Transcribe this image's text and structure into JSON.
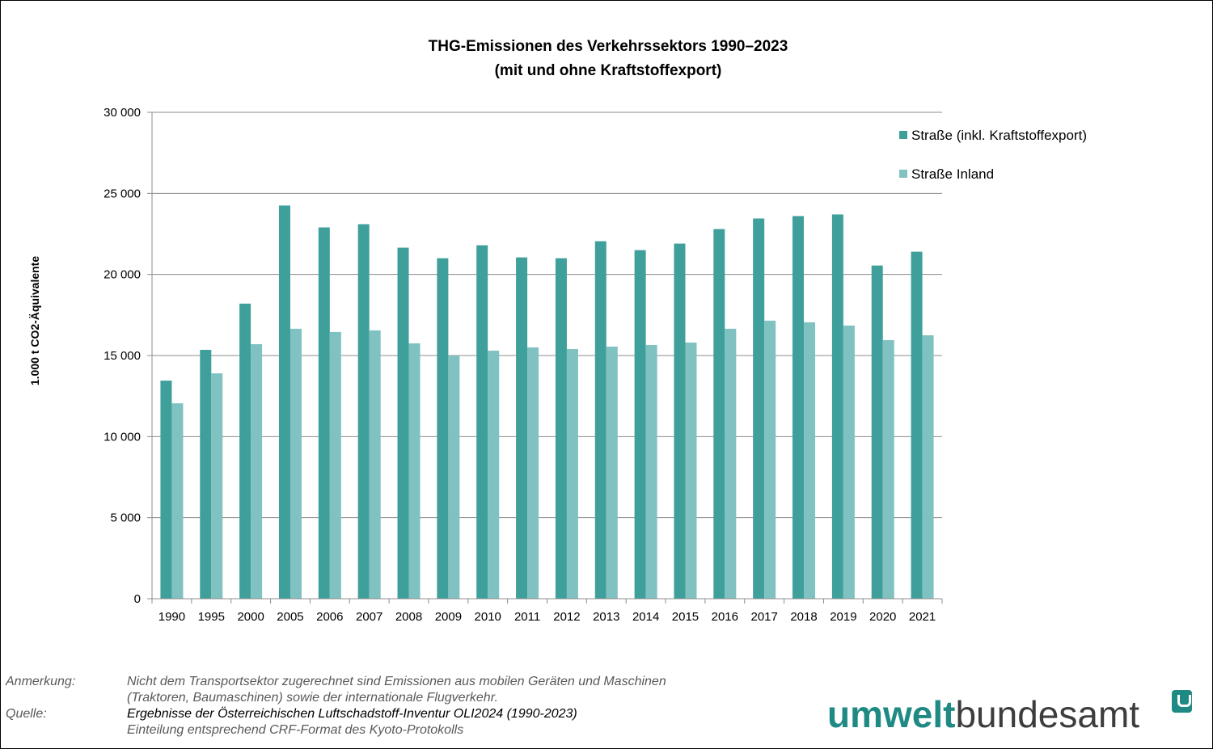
{
  "chart_data": {
    "type": "bar",
    "title": [
      "THG-Emissionen des Verkehrssektors 1990–2023",
      "(mit und ohne Kraftstoffexport)"
    ],
    "ylabel": "1.000 t CO2-Äquivalente",
    "ylim": [
      0,
      30000
    ],
    "yticks": [
      "0",
      "5 000",
      "10 000",
      "15 000",
      "20 000",
      "25 000",
      "30 000"
    ],
    "ytick_values": [
      0,
      5000,
      10000,
      15000,
      20000,
      25000,
      30000
    ],
    "grid": true,
    "legend_position": "top-right",
    "categories": [
      "1990",
      "1995",
      "2000",
      "2005",
      "2006",
      "2007",
      "2008",
      "2009",
      "2010",
      "2011",
      "2012",
      "2013",
      "2014",
      "2015",
      "2016",
      "2017",
      "2018",
      "2019",
      "2020",
      "2021"
    ],
    "series": [
      {
        "name": "Straße (inkl. Kraftstoffexport)",
        "color": "#3fa09b",
        "values": [
          13450,
          15350,
          18200,
          24250,
          22900,
          23100,
          21650,
          21000,
          21800,
          21050,
          21000,
          22050,
          21500,
          21900,
          22800,
          23450,
          23600,
          23700,
          20550,
          21400
        ]
      },
      {
        "name": "Straße Inland",
        "color": "#80c1c1",
        "values": [
          12050,
          13900,
          15700,
          16650,
          16450,
          16550,
          15750,
          15000,
          15300,
          15500,
          15400,
          15550,
          15650,
          15800,
          16650,
          17150,
          17050,
          16850,
          15950,
          16250
        ]
      }
    ]
  },
  "notes": [
    {
      "label": "Anmerkung:",
      "lines": [
        "Nicht dem Transportsektor zugerechnet sind Emissionen aus mobilen Geräten und Maschinen",
        "(Traktoren, Baumaschinen) sowie der internationale Flugverkehr."
      ]
    },
    {
      "label": "Quelle:",
      "lines": [
        "Ergebnisse der Österreichischen Luftschadstoff-Inventur OLI2024 (1990-2023)",
        "Einteilung entsprechend CRF-Format des Kyoto-Protokolls"
      ]
    }
  ],
  "logo": {
    "part1": "umwelt",
    "part2": "bundesamt",
    "colors": {
      "accent": "#1f8a83",
      "text": "#3d3d3d"
    }
  }
}
